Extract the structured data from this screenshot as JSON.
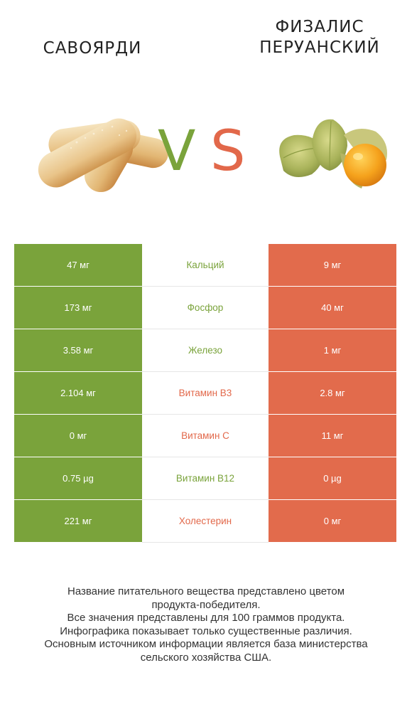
{
  "header": {
    "left_title": "САВОЯРДИ",
    "right_title_line1": "ФИЗАЛИС",
    "right_title_line2": "ПЕРУАНСКИЙ",
    "vs_v": "V",
    "vs_s": "S"
  },
  "colors": {
    "left": "#7aa33b",
    "right": "#e26b4c"
  },
  "rows": [
    {
      "left": "47 мг",
      "label": "Кальций",
      "right": "9 мг",
      "winner": "left"
    },
    {
      "left": "173 мг",
      "label": "Фосфор",
      "right": "40 мг",
      "winner": "left"
    },
    {
      "left": "3.58 мг",
      "label": "Железо",
      "right": "1 мг",
      "winner": "left"
    },
    {
      "left": "2.104 мг",
      "label": "Витамин B3",
      "right": "2.8 мг",
      "winner": "right"
    },
    {
      "left": "0 мг",
      "label": "Витамин C",
      "right": "11 мг",
      "winner": "right"
    },
    {
      "left": "0.75 µg",
      "label": "Витамин B12",
      "right": "0 µg",
      "winner": "left"
    },
    {
      "left": "221 мг",
      "label": "Холестерин",
      "right": "0 мг",
      "winner": "right"
    }
  ],
  "footer": {
    "line1": "Название питательного вещества представлено цветом",
    "line2": "продукта-победителя.",
    "line3": "Все значения представлены для 100 граммов продукта.",
    "line4": "Инфографика показывает только существенные различия.",
    "line5": "Основным источником информации является база министерства",
    "line6": "сельского хозяйства США."
  }
}
